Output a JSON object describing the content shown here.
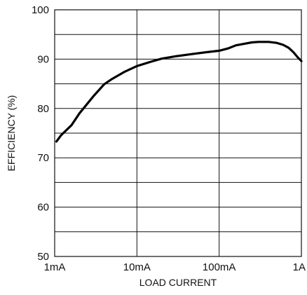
{
  "chart_data": {
    "type": "line",
    "title": "",
    "xlabel": "LOAD CURRENT",
    "ylabel": "EFFICIENCY (%)",
    "x_scale": "log",
    "xlim": [
      0.001,
      1
    ],
    "ylim": [
      50,
      100
    ],
    "grid": true,
    "x_ticks": [
      {
        "value": 0.001,
        "label": "1mA"
      },
      {
        "value": 0.01,
        "label": "10mA"
      },
      {
        "value": 0.1,
        "label": "100mA"
      },
      {
        "value": 1,
        "label": "1A"
      }
    ],
    "y_ticks": [
      {
        "value": 50,
        "label": "50"
      },
      {
        "value": 60,
        "label": "60"
      },
      {
        "value": 70,
        "label": "70"
      },
      {
        "value": 80,
        "label": "80"
      },
      {
        "value": 90,
        "label": "90"
      },
      {
        "value": 100,
        "label": "100"
      }
    ],
    "y_minor_grid": [
      55,
      65,
      75,
      85,
      95
    ],
    "series": [
      {
        "color": "#000000",
        "points": [
          {
            "x": 0.00105,
            "y": 73.3
          },
          {
            "x": 0.0012,
            "y": 74.6
          },
          {
            "x": 0.0016,
            "y": 76.6
          },
          {
            "x": 0.002,
            "y": 79.0
          },
          {
            "x": 0.003,
            "y": 82.6
          },
          {
            "x": 0.004,
            "y": 84.9
          },
          {
            "x": 0.005,
            "y": 86.0
          },
          {
            "x": 0.007,
            "y": 87.4
          },
          {
            "x": 0.01,
            "y": 88.6
          },
          {
            "x": 0.015,
            "y": 89.5
          },
          {
            "x": 0.02,
            "y": 90.1
          },
          {
            "x": 0.03,
            "y": 90.6
          },
          {
            "x": 0.05,
            "y": 91.1
          },
          {
            "x": 0.07,
            "y": 91.4
          },
          {
            "x": 0.1,
            "y": 91.7
          },
          {
            "x": 0.13,
            "y": 92.2
          },
          {
            "x": 0.16,
            "y": 92.8
          },
          {
            "x": 0.2,
            "y": 93.1
          },
          {
            "x": 0.25,
            "y": 93.4
          },
          {
            "x": 0.3,
            "y": 93.5
          },
          {
            "x": 0.4,
            "y": 93.5
          },
          {
            "x": 0.5,
            "y": 93.3
          },
          {
            "x": 0.6,
            "y": 92.9
          },
          {
            "x": 0.7,
            "y": 92.3
          },
          {
            "x": 0.8,
            "y": 91.4
          },
          {
            "x": 0.9,
            "y": 90.4
          },
          {
            "x": 1.0,
            "y": 89.6
          }
        ]
      }
    ]
  }
}
